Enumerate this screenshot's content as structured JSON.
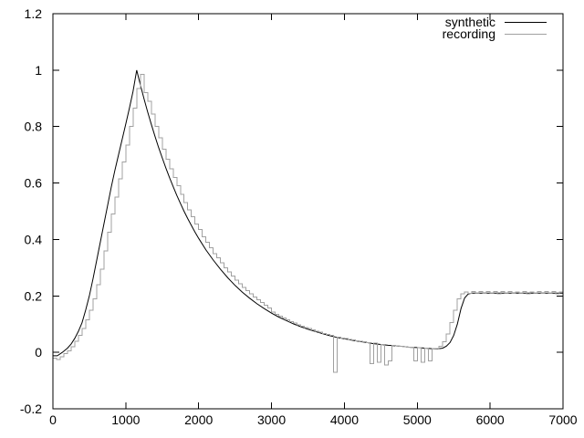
{
  "figure": {
    "background_color": "#ffffff",
    "frame_color": "#000000"
  },
  "legend": {
    "position": "top-right-inside",
    "items": [
      {
        "label": "synthetic",
        "color": "#000000"
      },
      {
        "label": "recording",
        "color": "#a0a0a0"
      }
    ]
  },
  "chart_data": {
    "type": "line",
    "title": "",
    "xlabel": "",
    "ylabel": "",
    "xlim": [
      0,
      7000
    ],
    "ylim": [
      -0.2,
      1.2
    ],
    "grid": false,
    "legend_position": "top-right",
    "x_tick_values": [
      0,
      1000,
      2000,
      3000,
      4000,
      5000,
      6000,
      7000
    ],
    "x_tick_labels": [
      "0",
      "1000",
      "2000",
      "3000",
      "4000",
      "5000",
      "6000",
      "7000"
    ],
    "y_tick_values": [
      -0.2,
      0,
      0.2,
      0.4,
      0.6,
      0.8,
      1,
      1.2
    ],
    "y_tick_labels": [
      "-0.2",
      "0",
      "0.2",
      "0.4",
      "0.6",
      "0.8",
      "1",
      "1.2"
    ],
    "series": [
      {
        "name": "synthetic",
        "color": "#000000",
        "style": "line",
        "points": [
          [
            0,
            -0.012
          ],
          [
            60,
            -0.012
          ],
          [
            130,
            0
          ],
          [
            200,
            0.015
          ],
          [
            250,
            0.03
          ],
          [
            300,
            0.05
          ],
          [
            350,
            0.075
          ],
          [
            400,
            0.105
          ],
          [
            450,
            0.15
          ],
          [
            500,
            0.2
          ],
          [
            550,
            0.26
          ],
          [
            600,
            0.325
          ],
          [
            650,
            0.39
          ],
          [
            700,
            0.455
          ],
          [
            750,
            0.52
          ],
          [
            800,
            0.585
          ],
          [
            850,
            0.645
          ],
          [
            900,
            0.7
          ],
          [
            950,
            0.755
          ],
          [
            1000,
            0.81
          ],
          [
            1050,
            0.865
          ],
          [
            1100,
            0.925
          ],
          [
            1150,
            1.0
          ],
          [
            1200,
            0.948
          ],
          [
            1250,
            0.899
          ],
          [
            1300,
            0.852
          ],
          [
            1350,
            0.808
          ],
          [
            1400,
            0.766
          ],
          [
            1450,
            0.726
          ],
          [
            1500,
            0.689
          ],
          [
            1550,
            0.653
          ],
          [
            1600,
            0.619
          ],
          [
            1650,
            0.587
          ],
          [
            1700,
            0.556
          ],
          [
            1750,
            0.527
          ],
          [
            1800,
            0.5
          ],
          [
            1850,
            0.474
          ],
          [
            1900,
            0.45
          ],
          [
            1950,
            0.426
          ],
          [
            2000,
            0.404
          ],
          [
            2100,
            0.363
          ],
          [
            2200,
            0.327
          ],
          [
            2300,
            0.294
          ],
          [
            2400,
            0.264
          ],
          [
            2500,
            0.237
          ],
          [
            2600,
            0.213
          ],
          [
            2700,
            0.192
          ],
          [
            2800,
            0.172
          ],
          [
            2900,
            0.155
          ],
          [
            3000,
            0.139
          ],
          [
            3100,
            0.125
          ],
          [
            3200,
            0.113
          ],
          [
            3300,
            0.101
          ],
          [
            3400,
            0.091
          ],
          [
            3500,
            0.082
          ],
          [
            3600,
            0.074
          ],
          [
            3700,
            0.066
          ],
          [
            3800,
            0.059
          ],
          [
            3900,
            0.053
          ],
          [
            4000,
            0.048
          ],
          [
            4100,
            0.043
          ],
          [
            4200,
            0.039
          ],
          [
            4300,
            0.035
          ],
          [
            4400,
            0.031
          ],
          [
            4500,
            0.028
          ],
          [
            4600,
            0.025
          ],
          [
            4700,
            0.023
          ],
          [
            4800,
            0.021
          ],
          [
            4900,
            0.018
          ],
          [
            5000,
            0.017
          ],
          [
            5100,
            0.015
          ],
          [
            5200,
            0.013
          ],
          [
            5280,
            0.012
          ],
          [
            5350,
            0.015
          ],
          [
            5400,
            0.022
          ],
          [
            5450,
            0.035
          ],
          [
            5500,
            0.06
          ],
          [
            5550,
            0.1
          ],
          [
            5600,
            0.155
          ],
          [
            5650,
            0.193
          ],
          [
            5700,
            0.207
          ],
          [
            5750,
            0.21
          ],
          [
            6000,
            0.21
          ],
          [
            6500,
            0.21
          ],
          [
            7000,
            0.21
          ]
        ]
      },
      {
        "name": "recording",
        "color": "#a0a0a0",
        "style": "steps",
        "x_start": 0,
        "x_step": 50,
        "values": [
          -0.02,
          -0.025,
          -0.015,
          -0.005,
          0.005,
          0.02,
          0.04,
          0.06,
          0.085,
          0.115,
          0.15,
          0.19,
          0.24,
          0.295,
          0.36,
          0.425,
          0.49,
          0.55,
          0.615,
          0.675,
          0.735,
          0.8,
          0.865,
          0.935,
          0.985,
          0.92,
          0.89,
          0.845,
          0.8,
          0.76,
          0.72,
          0.685,
          0.65,
          0.62,
          0.59,
          0.56,
          0.53,
          0.505,
          0.48,
          0.455,
          0.435,
          0.41,
          0.39,
          0.37,
          0.35,
          0.335,
          0.318,
          0.3,
          0.285,
          0.27,
          0.256,
          0.243,
          0.23,
          0.218,
          0.207,
          0.196,
          0.186,
          0.176,
          0.167,
          0.158,
          0.143,
          0.135,
          0.128,
          0.122,
          0.115,
          0.109,
          0.104,
          0.098,
          0.093,
          0.088,
          0.084,
          0.079,
          0.075,
          0.071,
          0.067,
          0.064,
          0.06,
          -0.07,
          0.054,
          0.051,
          0.049,
          0.046,
          0.044,
          0.041,
          0.039,
          0.037,
          0.035,
          -0.04,
          0.032,
          -0.035,
          0.028,
          -0.045,
          -0.03,
          0.024,
          0.023,
          0.022,
          0.02,
          0.019,
          0.018,
          -0.03,
          0.017,
          -0.035,
          0.015,
          -0.03,
          0.013,
          0.014,
          0.022,
          0.038,
          0.065,
          0.105,
          0.15,
          0.19,
          0.207,
          0.214,
          0.209,
          0.215,
          0.21,
          0.216,
          0.209,
          0.215,
          0.21,
          0.216,
          0.208,
          0.215,
          0.21,
          0.216,
          0.209,
          0.214,
          0.21,
          0.216,
          0.208,
          0.214,
          0.21,
          0.216,
          0.209,
          0.215,
          0.21,
          0.215,
          0.208,
          0.214,
          0.212
        ]
      }
    ]
  }
}
